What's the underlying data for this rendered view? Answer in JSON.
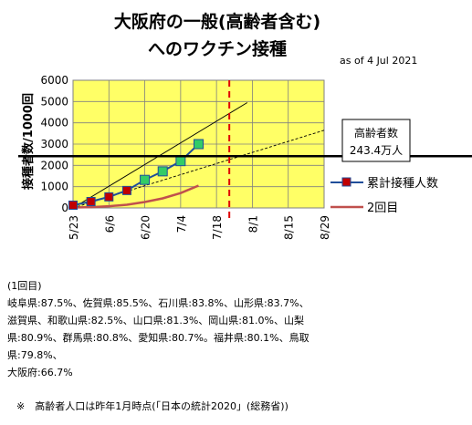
{
  "chart_data": {
    "type": "line",
    "title_line1": "大阪府の一般(高齢者含む)",
    "title_line2": "へのワクチン接種",
    "as_of": "as of 4 Jul 2021",
    "ylabel": "接種者数/1000回",
    "ylim": [
      0,
      6000
    ],
    "yticks": [
      "0",
      "1000",
      "2000",
      "3000",
      "4000",
      "5000",
      "6000"
    ],
    "xlim": [
      "5/23",
      "8/29"
    ],
    "xticks": [
      "5/23",
      "6/6",
      "6/20",
      "7/4",
      "7/18",
      "8/1",
      "8/15",
      "8/29"
    ],
    "series": [
      {
        "name": "累計接種人数",
        "color": "#1f4e9a",
        "marker": "square",
        "points": [
          {
            "x": "5/23",
            "y": 130
          },
          {
            "x": "5/30",
            "y": 300
          },
          {
            "x": "6/6",
            "y": 520
          },
          {
            "x": "6/13",
            "y": 820
          },
          {
            "x": "6/20",
            "y": 1320
          },
          {
            "x": "6/27",
            "y": 1720
          },
          {
            "x": "7/4",
            "y": 2200
          },
          {
            "x": "7/11",
            "y": 3000
          }
        ]
      },
      {
        "name": "2回目",
        "color": "#c0504d",
        "points": [
          {
            "x": "5/23",
            "y": 20
          },
          {
            "x": "5/30",
            "y": 40
          },
          {
            "x": "6/6",
            "y": 80
          },
          {
            "x": "6/13",
            "y": 150
          },
          {
            "x": "6/20",
            "y": 280
          },
          {
            "x": "6/27",
            "y": 450
          },
          {
            "x": "7/4",
            "y": 700
          },
          {
            "x": "7/11",
            "y": 1050
          }
        ]
      }
    ],
    "trendlines": [
      {
        "style": "solid",
        "from": {
          "x": "5/23",
          "y": 0
        },
        "to": {
          "x": "7/30",
          "y": 4950
        }
      },
      {
        "style": "dotted",
        "from": {
          "x": "5/23",
          "y": 0
        },
        "to": {
          "x": "8/29",
          "y": 3650
        }
      }
    ],
    "reference_line": {
      "y": 2434,
      "label_line1": "高齢者数",
      "label_line2": "243.4万人"
    },
    "marker_date": "7/23",
    "colors": {
      "plot_background": "#ffff66",
      "green_marker": "#33cc66",
      "red_marker": "#c00000",
      "dashed_line": "#e00000",
      "grid": "#808080"
    }
  },
  "notes": {
    "header": "(1回目)",
    "lines": [
      "岐阜県:87.5%、佐賀県:85.5%、石川県:83.8%、山形県:83.7%、",
      "滋賀県、和歌山県:82.5%、山口県:81.3%、岡山県:81.0%、山梨",
      "県:80.9%、群馬県:80.8%、愛知県:80.7%。福井県:80.1%、鳥取",
      "県:79.8%、",
      "大阪府:66.7%"
    ],
    "footnote": "※　高齢者人口は昨年1月時点(「日本の統計2020」(総務省))"
  }
}
